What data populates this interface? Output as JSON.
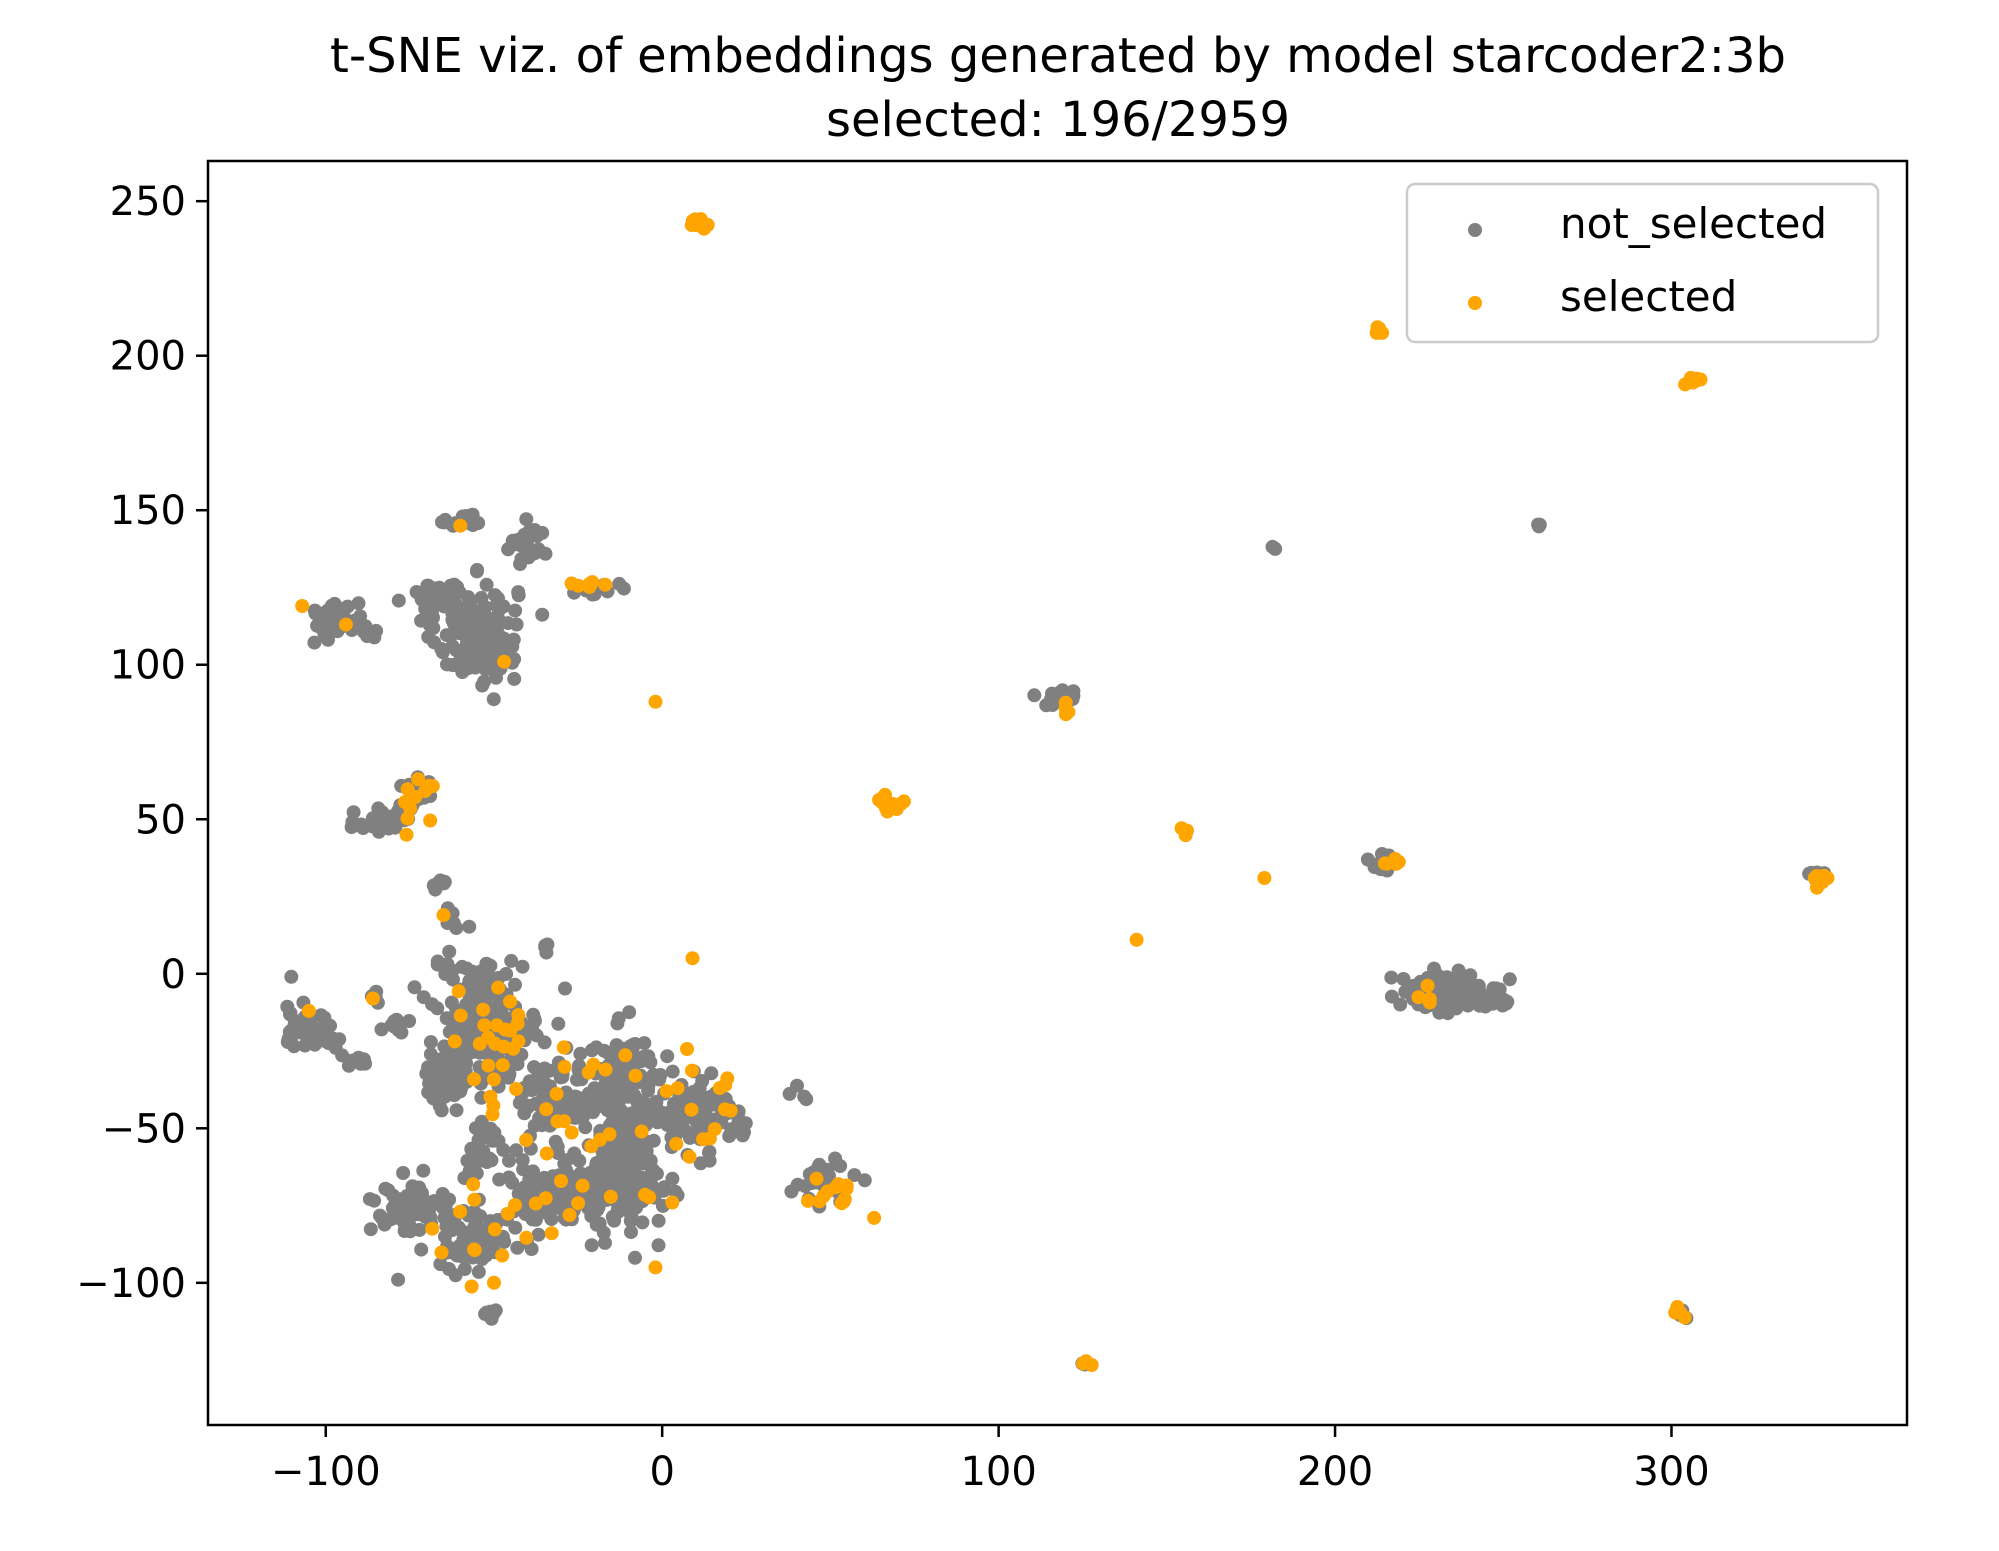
{
  "chart_data": {
    "type": "scatter",
    "title": "t-SNE viz. of embeddings generated by model starcoder2:3b",
    "subtitle": "selected: 196/2959",
    "xlabel": "",
    "ylabel": "",
    "xlim": [
      -135,
      370
    ],
    "ylim": [
      -146,
      263
    ],
    "x_ticks": [
      -100,
      0,
      100,
      200,
      300
    ],
    "y_ticks": [
      -100,
      -50,
      0,
      50,
      100,
      150,
      200,
      250
    ],
    "x_tick_labels": [
      "−100",
      "0",
      "100",
      "200",
      "300"
    ],
    "y_tick_labels": [
      "−100",
      "−50",
      "0",
      "50",
      "100",
      "150",
      "200",
      "250"
    ],
    "grid": false,
    "legend_position": "top-right",
    "colors": {
      "not_selected": "#808080",
      "selected": "#FFA500"
    },
    "series": [
      {
        "name": "not_selected",
        "clusters": [
          {
            "x": -55,
            "y": 110,
            "sx": 6,
            "sy": 8,
            "n": 150
          },
          {
            "x": -67,
            "y": 122,
            "sx": 4,
            "sy": 3,
            "n": 50
          },
          {
            "x": -40,
            "y": 139,
            "sx": 3,
            "sy": 3,
            "n": 25
          },
          {
            "x": -58,
            "y": 146,
            "sx": 3,
            "sy": 1.5,
            "n": 15
          },
          {
            "x": -96,
            "y": 114,
            "sx": 5,
            "sy": 3,
            "n": 45
          },
          {
            "x": -19,
            "y": 124,
            "sx": 3,
            "sy": 2,
            "n": 10
          },
          {
            "x": -82,
            "y": 50,
            "sx": 4,
            "sy": 3,
            "n": 35
          },
          {
            "x": -73,
            "y": 58,
            "sx": 3,
            "sy": 3,
            "n": 20
          },
          {
            "x": -66,
            "y": 29,
            "sx": 2,
            "sy": 1,
            "n": 8
          },
          {
            "x": -63,
            "y": 16,
            "sx": 1.5,
            "sy": 2,
            "n": 6
          },
          {
            "x": -35,
            "y": 9,
            "sx": 1,
            "sy": 1,
            "n": 4
          },
          {
            "x": -107,
            "y": -15,
            "sx": 3,
            "sy": 5,
            "n": 30
          },
          {
            "x": -98,
            "y": -20,
            "sx": 3,
            "sy": 3,
            "n": 12
          },
          {
            "x": -90,
            "y": -28,
            "sx": 2,
            "sy": 1,
            "n": 10
          },
          {
            "x": -85,
            "y": -8,
            "sx": 1,
            "sy": 1,
            "n": 4
          },
          {
            "x": -80,
            "y": -18,
            "sx": 2,
            "sy": 2,
            "n": 8
          },
          {
            "x": -52,
            "y": -15,
            "sx": 8,
            "sy": 10,
            "n": 200
          },
          {
            "x": -63,
            "y": -33,
            "sx": 4,
            "sy": 6,
            "n": 60
          },
          {
            "x": -30,
            "y": -40,
            "sx": 6,
            "sy": 5,
            "n": 90
          },
          {
            "x": -12,
            "y": -35,
            "sx": 6,
            "sy": 8,
            "n": 120
          },
          {
            "x": -10,
            "y": -65,
            "sx": 5,
            "sy": 10,
            "n": 170
          },
          {
            "x": 8,
            "y": -45,
            "sx": 6,
            "sy": 6,
            "n": 100
          },
          {
            "x": -30,
            "y": -70,
            "sx": 8,
            "sy": 6,
            "n": 130
          },
          {
            "x": -53,
            "y": -58,
            "sx": 3,
            "sy": 5,
            "n": 30
          },
          {
            "x": -75,
            "y": -77,
            "sx": 6,
            "sy": 4,
            "n": 80
          },
          {
            "x": -55,
            "y": -85,
            "sx": 6,
            "sy": 5,
            "n": 70
          },
          {
            "x": -50,
            "y": -110,
            "sx": 2,
            "sy": 1,
            "n": 8
          },
          {
            "x": 22,
            "y": -48,
            "sx": 3,
            "sy": 2,
            "n": 10
          },
          {
            "x": 42,
            "y": -38,
            "sx": 1,
            "sy": 1,
            "n": 4
          },
          {
            "x": 48,
            "y": -68,
            "sx": 4,
            "sy": 3,
            "n": 25
          },
          {
            "x": 117,
            "y": 89,
            "sx": 3,
            "sy": 2,
            "n": 25
          },
          {
            "x": 215,
            "y": 36,
            "sx": 2,
            "sy": 1.5,
            "n": 20
          },
          {
            "x": 233,
            "y": -6,
            "sx": 6,
            "sy": 3,
            "n": 180
          },
          {
            "x": 245,
            "y": -9,
            "sx": 3,
            "sy": 1.5,
            "n": 25
          },
          {
            "x": 182,
            "y": 138,
            "sx": 0.5,
            "sy": 0.5,
            "n": 3
          },
          {
            "x": 260,
            "y": 145,
            "sx": 0.5,
            "sy": 0.5,
            "n": 3
          },
          {
            "x": 126,
            "y": -126,
            "sx": 1,
            "sy": 0.5,
            "n": 5
          },
          {
            "x": 303,
            "y": -110,
            "sx": 1,
            "sy": 1,
            "n": 5
          },
          {
            "x": 343,
            "y": 32,
            "sx": 1.5,
            "sy": 1,
            "n": 8
          }
        ]
      },
      {
        "name": "selected",
        "clusters": [
          {
            "x": 10,
            "y": 243,
            "sx": 1.5,
            "sy": 1.2,
            "n": 10
          },
          {
            "x": 213,
            "y": 208,
            "sx": 0.8,
            "sy": 0.6,
            "n": 5
          },
          {
            "x": 307,
            "y": 192,
            "sx": 1.5,
            "sy": 0.8,
            "n": 8
          },
          {
            "x": -23,
            "y": 126,
            "sx": 3,
            "sy": 1.2,
            "n": 7
          },
          {
            "x": 68,
            "y": 55,
            "sx": 2,
            "sy": 2,
            "n": 10
          },
          {
            "x": -70,
            "y": 55,
            "sx": 4,
            "sy": 5,
            "n": 10
          },
          {
            "x": 120,
            "y": 85,
            "sx": 1,
            "sy": 1.5,
            "n": 3
          },
          {
            "x": 155,
            "y": 46,
            "sx": 0.6,
            "sy": 0.8,
            "n": 3
          },
          {
            "x": 217,
            "y": 35,
            "sx": 2,
            "sy": 1,
            "n": 5
          },
          {
            "x": 344,
            "y": 30,
            "sx": 1.5,
            "sy": 2,
            "n": 8
          },
          {
            "x": -50,
            "y": -25,
            "sx": 8,
            "sy": 12,
            "n": 25
          },
          {
            "x": -20,
            "y": -40,
            "sx": 12,
            "sy": 15,
            "n": 20
          },
          {
            "x": 10,
            "y": -45,
            "sx": 8,
            "sy": 15,
            "n": 15
          },
          {
            "x": -55,
            "y": -85,
            "sx": 10,
            "sy": 8,
            "n": 12
          },
          {
            "x": -30,
            "y": -75,
            "sx": 10,
            "sy": 6,
            "n": 10
          },
          {
            "x": 50,
            "y": -70,
            "sx": 4,
            "sy": 3,
            "n": 12
          },
          {
            "x": 226,
            "y": -8,
            "sx": 1.5,
            "sy": 4,
            "n": 4
          },
          {
            "x": 125,
            "y": -126,
            "sx": 1,
            "sy": 0.5,
            "n": 3
          },
          {
            "x": 302,
            "y": -110,
            "sx": 1,
            "sy": 1,
            "n": 5
          }
        ],
        "points": [
          [
            -107,
            119
          ],
          [
            -94,
            113
          ],
          [
            -60,
            145
          ],
          [
            -47,
            101
          ],
          [
            -76,
            45
          ],
          [
            -65,
            19
          ],
          [
            -86,
            -8
          ],
          [
            -105,
            -12
          ],
          [
            9,
            5
          ],
          [
            141,
            11
          ],
          [
            179,
            31
          ],
          [
            63,
            -79
          ],
          [
            -50,
            -100
          ],
          [
            -2,
            -95
          ],
          [
            3,
            -74
          ],
          [
            -2,
            88
          ],
          [
            120,
            84
          ]
        ]
      }
    ]
  }
}
